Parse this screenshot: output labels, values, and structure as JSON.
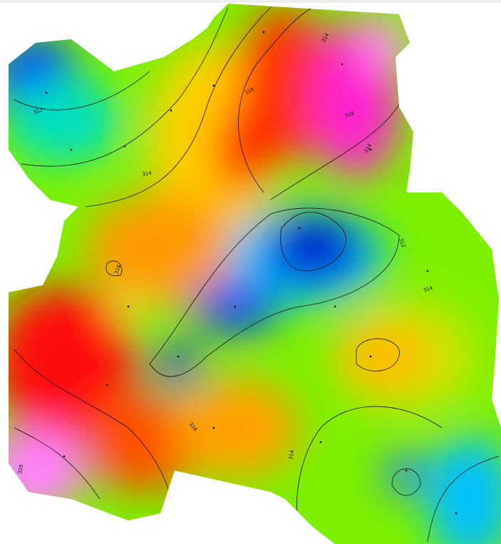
{
  "contour_labels": [
    "312",
    "314",
    "316",
    "314",
    "316",
    "314",
    "316",
    "312",
    "314",
    "316",
    "314",
    "320"
  ]
}
